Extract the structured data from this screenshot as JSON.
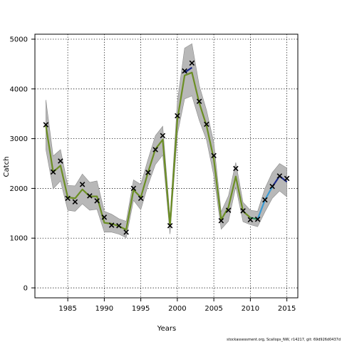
{
  "chart_data": {
    "type": "line",
    "xlabel": "Years",
    "ylabel": "Catch",
    "xlim": [
      1980.5,
      2016.5
    ],
    "ylim": [
      -200,
      5100
    ],
    "xticks": [
      1985,
      1990,
      1995,
      2000,
      2005,
      2010,
      2015
    ],
    "yticks": [
      0,
      1000,
      2000,
      3000,
      4000,
      5000
    ],
    "grid": true,
    "grid_style": "dotted",
    "observed": {
      "x": [
        1982,
        1983,
        1984,
        1985,
        1986,
        1987,
        1988,
        1989,
        1990,
        1991,
        1992,
        1993,
        1994,
        1995,
        1996,
        1997,
        1998,
        1999,
        2000,
        2001,
        2002,
        2003,
        2004,
        2005,
        2006,
        2007,
        2008,
        2009,
        2010,
        2011,
        2012,
        2013,
        2014,
        2015
      ],
      "y": [
        3280,
        2330,
        2550,
        1800,
        1730,
        2080,
        1850,
        1750,
        1420,
        1260,
        1250,
        1120,
        2000,
        1800,
        2320,
        2780,
        3060,
        1250,
        3460,
        4360,
        4520,
        3750,
        3290,
        2660,
        1350,
        1560,
        2400,
        1550,
        1370,
        1380,
        1770,
        2040,
        2250,
        2200
      ]
    },
    "envelope": {
      "upper": [
        3780,
        2650,
        2780,
        2060,
        2050,
        2290,
        2120,
        2150,
        1540,
        1480,
        1390,
        1340,
        2170,
        2080,
        2590,
        3060,
        3250,
        1420,
        3740,
        4820,
        4910,
        4070,
        3570,
        2920,
        1530,
        1850,
        2520,
        1720,
        1560,
        1540,
        2000,
        2320,
        2500,
        2410
      ],
      "lower": [
        2780,
        1990,
        2150,
        1560,
        1540,
        1690,
        1560,
        1580,
        1120,
        1120,
        1080,
        1010,
        1760,
        1570,
        2070,
        2480,
        2670,
        1080,
        3080,
        3800,
        3860,
        3370,
        2970,
        2250,
        1180,
        1340,
        2030,
        1330,
        1270,
        1230,
        1530,
        1800,
        1950,
        1830
      ]
    },
    "series": [
      {
        "color": "#6B8E23",
        "x": [
          1982,
          1983,
          1984,
          1985,
          1986,
          1987,
          1988,
          1989,
          1990,
          1991,
          1992,
          1993,
          1994,
          1995,
          1996,
          1997,
          1998,
          1999,
          2000,
          2001,
          2002,
          2003,
          2004,
          2005,
          2006,
          2007,
          2008,
          2009,
          2010
        ],
        "y": [
          3260,
          2330,
          2460,
          1820,
          1800,
          1980,
          1840,
          1840,
          1310,
          1290,
          1240,
          1170,
          1970,
          1820,
          2330,
          2790,
          2980,
          1250,
          3380,
          4270,
          4330,
          3720,
          3260,
          2590,
          1370,
          1620,
          2240,
          1540,
          1410
        ]
      },
      {
        "color": "#2E8B57",
        "x": [
          2010,
          2011
        ],
        "y": [
          1410,
          1380
        ]
      },
      {
        "color": "#3A9BD5",
        "x": [
          2011,
          2012,
          2013
        ],
        "y": [
          1380,
          1770,
          2030
        ]
      },
      {
        "color": "#1C2A8C",
        "x": [
          2013,
          2014,
          2015
        ],
        "y": [
          2030,
          2250,
          2130
        ]
      },
      {
        "color": "#1C2A8C",
        "x": [
          2001,
          2002
        ],
        "y": [
          4330,
          4430
        ]
      }
    ],
    "colors": {
      "envelope": "#b8b8b8",
      "point": "#000000",
      "grid": "#000000"
    }
  },
  "footer": "stockassessment.org, Scallops_NW, r14217, git: 69d926d0437d"
}
